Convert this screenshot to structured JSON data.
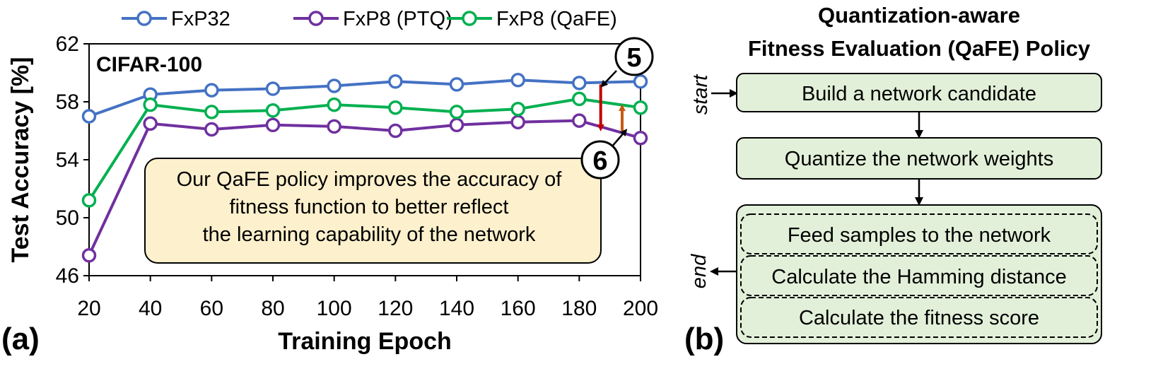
{
  "chart_data": {
    "type": "line",
    "panel_label": "(a)",
    "dataset_label": "CIFAR-100",
    "xlabel": "Training Epoch",
    "ylabel": "Test Accuracy [%]",
    "x": [
      20,
      40,
      60,
      80,
      100,
      120,
      140,
      160,
      180,
      200
    ],
    "xlim": [
      20,
      200
    ],
    "ylim": [
      46,
      62
    ],
    "yticks": [
      46,
      50,
      54,
      58,
      62
    ],
    "grid": false,
    "legend_position": "top",
    "series": [
      {
        "name": "FxP32",
        "color": "#4472c4",
        "values": [
          57.0,
          58.5,
          58.8,
          58.9,
          59.1,
          59.4,
          59.2,
          59.5,
          59.3,
          59.4
        ]
      },
      {
        "name": "FxP8 (PTQ)",
        "color": "#7030a0",
        "values": [
          47.4,
          56.5,
          56.1,
          56.4,
          56.3,
          56.0,
          56.4,
          56.6,
          56.7,
          55.5
        ]
      },
      {
        "name": "FxP8 (QaFE)",
        "color": "#00b050",
        "values": [
          51.2,
          57.8,
          57.3,
          57.4,
          57.8,
          57.6,
          57.3,
          57.5,
          58.2,
          57.6
        ]
      }
    ],
    "callouts": {
      "five": {
        "label": "5",
        "arrow_color": "#c00000",
        "arrow_x": 187,
        "from_y": 59.2,
        "to_y": 56.2
      },
      "six": {
        "label": "6",
        "arrow_color": "#c55a11",
        "arrow_x": 194,
        "from_y": 56.0,
        "to_y": 57.6
      }
    },
    "annotation": {
      "lines": [
        "Our QaFE policy improves the accuracy of",
        "fitness function to better reflect",
        "the learning capability of the network"
      ],
      "fill": "#fdf0cc"
    }
  },
  "policy": {
    "panel_label": "(b)",
    "title_lines": [
      "Quantization-aware",
      "Fitness Evaluation (QaFE) Policy"
    ],
    "start_label": "start",
    "end_label": "end",
    "fill": "#e2f0d9",
    "steps": [
      "Build a network candidate",
      "Quantize the network weights"
    ],
    "loop_steps": [
      "Feed samples to the network",
      "Calculate the Hamming distance",
      "Calculate the fitness score"
    ]
  }
}
